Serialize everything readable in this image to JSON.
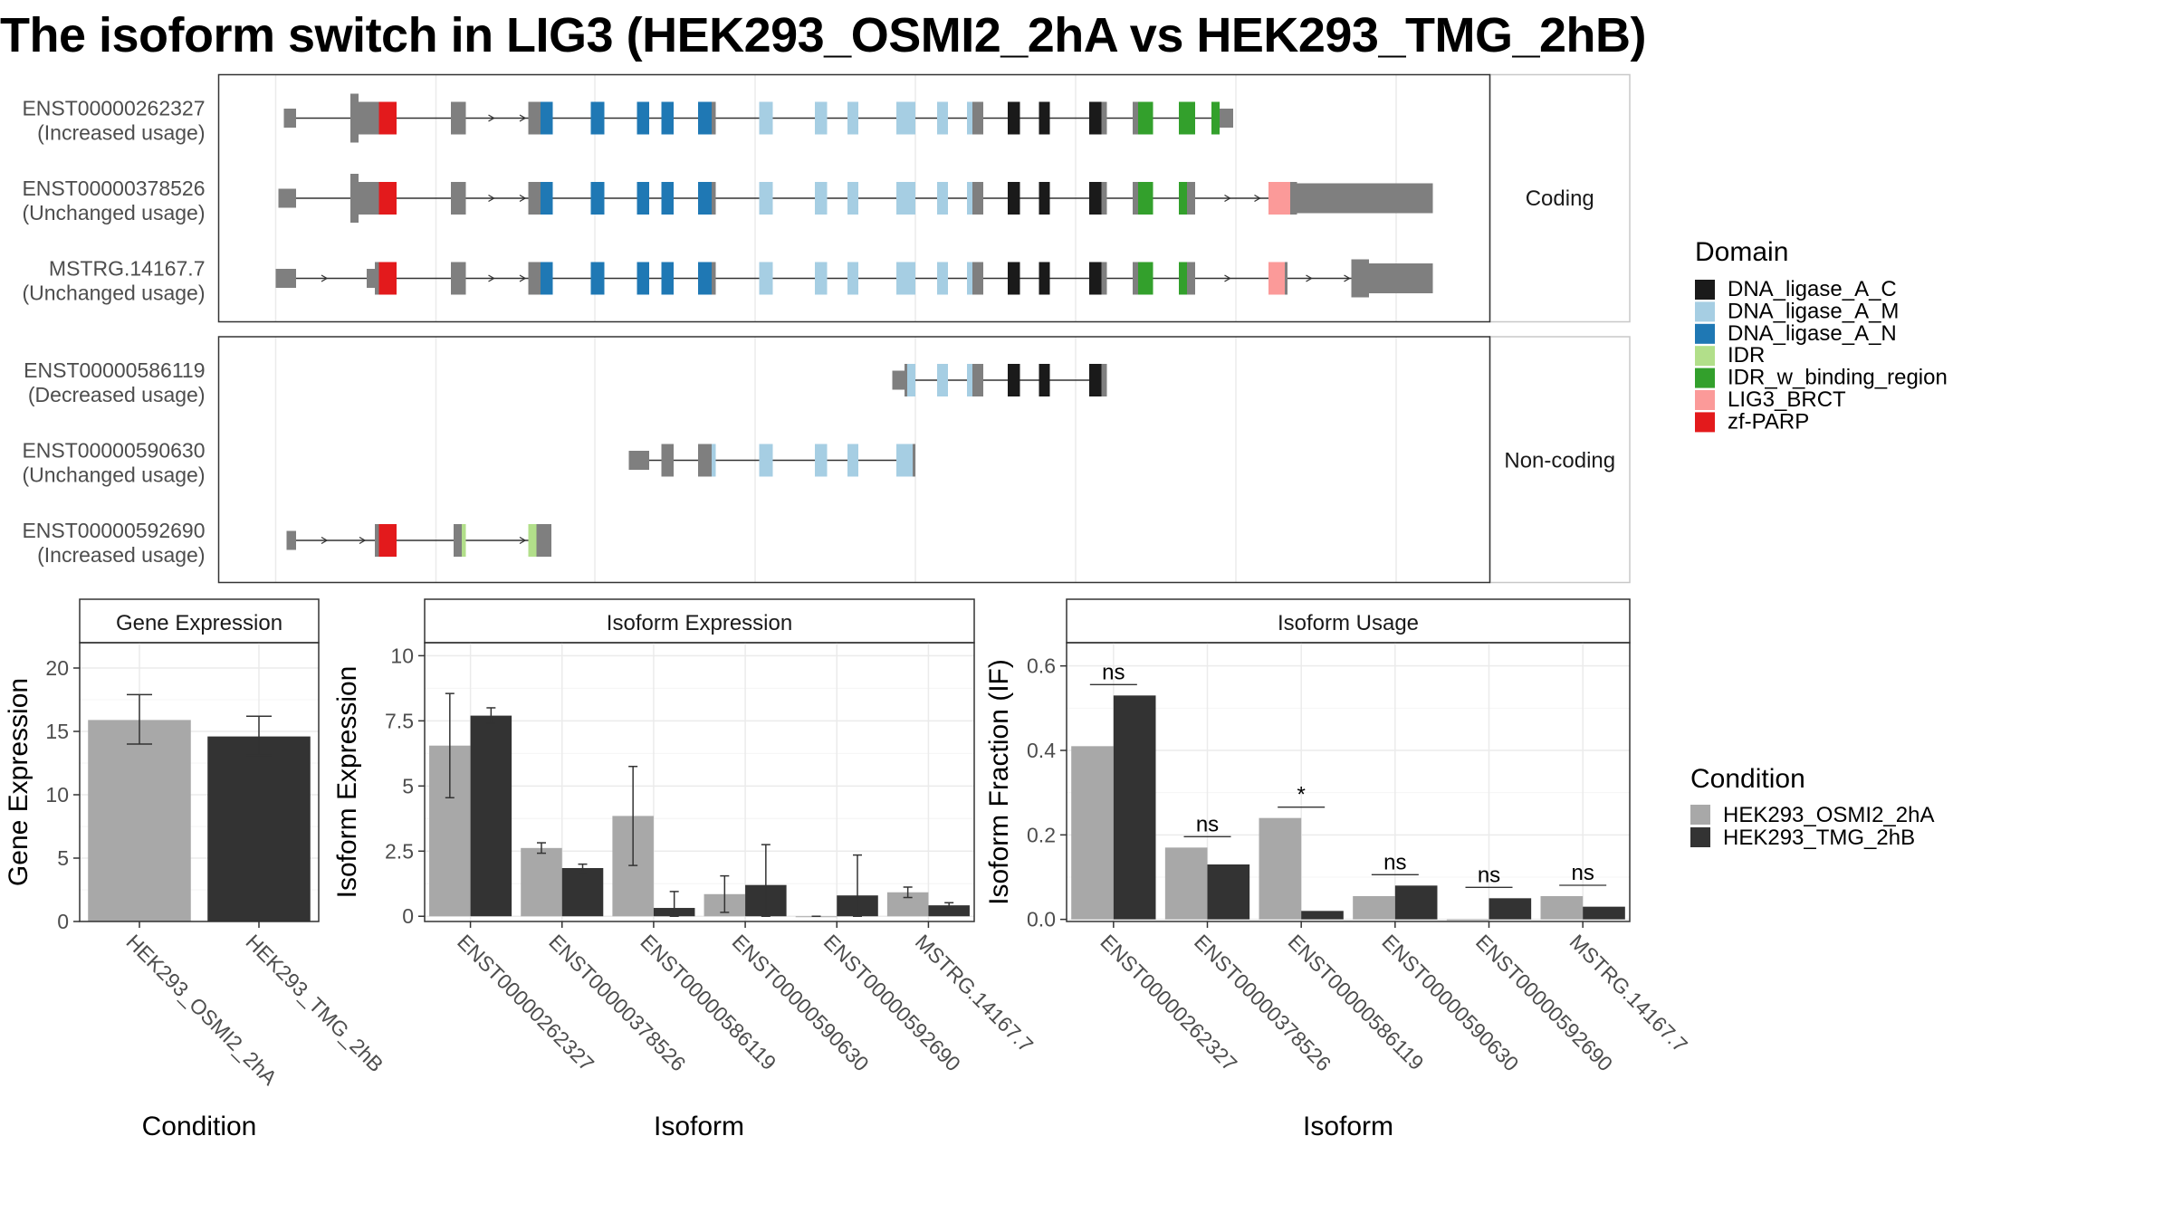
{
  "title": "The isoform switch in LIG3 (HEK293_OSMI2_2hA vs HEK293_TMG_2hB)",
  "domain_legend": {
    "title": "Domain",
    "items": [
      {
        "name": "DNA_ligase_A_C",
        "color": "#1a1a1a"
      },
      {
        "name": "DNA_ligase_A_M",
        "color": "#a6cee3"
      },
      {
        "name": "DNA_ligase_A_N",
        "color": "#1f78b4"
      },
      {
        "name": "IDR",
        "color": "#b2df8a"
      },
      {
        "name": "IDR_w_binding_region",
        "color": "#33a02c"
      },
      {
        "name": "LIG3_BRCT",
        "color": "#fb9a99"
      },
      {
        "name": "zf-PARP",
        "color": "#e31a1c"
      }
    ]
  },
  "condition_legend": {
    "title": "Condition",
    "items": [
      {
        "name": "HEK293_OSMI2_2hA",
        "color": "#a8a8a8"
      },
      {
        "name": "HEK293_TMG_2hB",
        "color": "#333333"
      }
    ]
  },
  "transcript_panels": [
    {
      "facet": "Coding",
      "transcripts": [
        {
          "id": "ENST00000262327",
          "usage": "(Increased usage)"
        },
        {
          "id": "ENST00000378526",
          "usage": "(Unchanged usage)"
        },
        {
          "id": "MSTRG.14167.7",
          "usage": "(Unchanged usage)"
        }
      ]
    },
    {
      "facet": "Non-coding",
      "transcripts": [
        {
          "id": "ENST00000586119",
          "usage": "(Decreased usage)"
        },
        {
          "id": "ENST00000590630",
          "usage": "(Unchanged usage)"
        },
        {
          "id": "ENST00000592690",
          "usage": "(Increased usage)"
        }
      ]
    }
  ],
  "chart_data": [
    {
      "type": "bar",
      "title": "Gene Expression",
      "xlabel": "Condition",
      "ylabel": "Gene Expression",
      "ylim": [
        0,
        22
      ],
      "yticks": [
        0,
        5,
        10,
        15,
        20
      ],
      "categories": [
        "HEK293_OSMI2_2hA",
        "HEK293_TMG_2hB"
      ],
      "values": [
        15.9,
        14.6
      ],
      "errors": [
        [
          14.0,
          17.9
        ],
        [
          13.1,
          16.2
        ]
      ],
      "colors": [
        "#a8a8a8",
        "#333333"
      ],
      "grid": true
    },
    {
      "type": "bar",
      "title": "Isoform Expression",
      "xlabel": "Isoform",
      "ylabel": "Isoform Expression",
      "ylim": [
        -0.2,
        10.5
      ],
      "yticks": [
        0.0,
        2.5,
        5.0,
        7.5,
        10.0
      ],
      "categories": [
        "ENST00000262327",
        "ENST00000378526",
        "ENST00000586119",
        "ENST00000590630",
        "ENST00000592690",
        "MSTRG.14167.7"
      ],
      "series": [
        {
          "name": "HEK293_OSMI2_2hA",
          "values": [
            6.55,
            2.62,
            3.85,
            0.85,
            0.0,
            0.92
          ],
          "errors": [
            [
              4.55,
              8.55
            ],
            [
              2.42,
              2.82
            ],
            [
              1.95,
              5.75
            ],
            [
              0.15,
              1.55
            ],
            [
              0.0,
              0.0
            ],
            [
              0.72,
              1.12
            ]
          ]
        },
        {
          "name": "HEK293_TMG_2hB",
          "values": [
            7.7,
            1.85,
            0.32,
            1.2,
            0.8,
            0.42
          ],
          "errors": [
            [
              7.4,
              8.0
            ],
            [
              1.7,
              2.0
            ],
            [
              0.0,
              0.95
            ],
            [
              0.0,
              2.75
            ],
            [
              0.0,
              2.35
            ],
            [
              0.32,
              0.52
            ]
          ]
        }
      ],
      "grid": true
    },
    {
      "type": "bar",
      "title": "Isoform Usage",
      "xlabel": "Isoform",
      "ylabel": "Isoform Fraction (IF)",
      "ylim": [
        -0.005,
        0.655
      ],
      "yticks": [
        "0.0",
        "0.2",
        "0.4",
        "0.6"
      ],
      "categories": [
        "ENST00000262327",
        "ENST00000378526",
        "ENST00000586119",
        "ENST00000590630",
        "ENST00000592690",
        "MSTRG.14167.7"
      ],
      "series": [
        {
          "name": "HEK293_OSMI2_2hA",
          "values": [
            0.41,
            0.17,
            0.24,
            0.055,
            0.0,
            0.055
          ]
        },
        {
          "name": "HEK293_TMG_2hB",
          "values": [
            0.53,
            0.13,
            0.02,
            0.08,
            0.05,
            0.03
          ]
        }
      ],
      "significance": [
        "ns",
        "ns",
        "*",
        "ns",
        "ns",
        "ns"
      ],
      "grid": true
    }
  ]
}
